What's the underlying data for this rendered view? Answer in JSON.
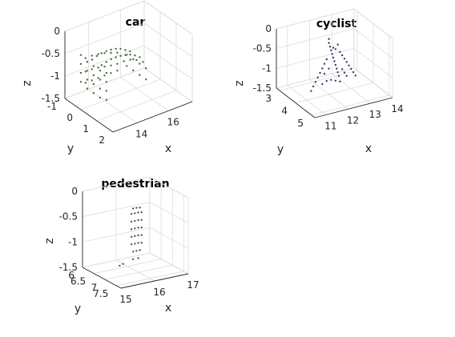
{
  "chart_data": [
    {
      "type": "scatter",
      "title": "car",
      "xlabel": "x",
      "ylabel": "y",
      "zlabel": "z",
      "xticks": [
        "14",
        "16"
      ],
      "yticks": [
        "-1",
        "0",
        "1",
        "2"
      ],
      "zticks": [
        "0",
        "-0.5",
        "-1",
        "-1.5"
      ],
      "xlim": [
        12.5,
        17.5
      ],
      "ylim": [
        -1,
        2
      ],
      "zlim": [
        -1.5,
        0
      ],
      "grid": true,
      "marker_color": "#4a6b3a",
      "series": [
        {
          "points": [
            [
              13.2,
              0.6,
              -0.45
            ],
            [
              13.5,
              0.6,
              -0.42
            ],
            [
              13.8,
              0.6,
              -0.4
            ],
            [
              14.1,
              0.6,
              -0.4
            ],
            [
              14.4,
              0.6,
              -0.41
            ],
            [
              14.7,
              0.6,
              -0.43
            ],
            [
              15.0,
              0.6,
              -0.46
            ],
            [
              15.3,
              0.6,
              -0.52
            ],
            [
              15.6,
              0.6,
              -0.6
            ],
            [
              13.2,
              0.0,
              -0.48
            ],
            [
              13.5,
              0.0,
              -0.44
            ],
            [
              13.8,
              0.0,
              -0.42
            ],
            [
              14.1,
              0.0,
              -0.41
            ],
            [
              14.4,
              0.0,
              -0.42
            ],
            [
              14.7,
              0.0,
              -0.44
            ],
            [
              15.0,
              0.0,
              -0.48
            ],
            [
              15.3,
              0.0,
              -0.55
            ],
            [
              15.6,
              0.0,
              -0.62
            ],
            [
              13.2,
              0.9,
              -0.55
            ],
            [
              13.2,
              0.9,
              -0.75
            ],
            [
              13.2,
              0.9,
              -0.95
            ],
            [
              13.2,
              0.9,
              -1.15
            ],
            [
              13.2,
              0.5,
              -0.6
            ],
            [
              13.2,
              0.5,
              -0.8
            ],
            [
              13.2,
              0.5,
              -1.0
            ],
            [
              13.2,
              0.5,
              -1.2
            ],
            [
              13.2,
              0.1,
              -0.6
            ],
            [
              13.2,
              0.1,
              -0.8
            ],
            [
              13.2,
              0.1,
              -1.0
            ],
            [
              13.2,
              0.1,
              -1.2
            ],
            [
              13.2,
              -0.3,
              -0.6
            ],
            [
              13.2,
              -0.3,
              -0.8
            ],
            [
              13.2,
              -0.3,
              -1.0
            ],
            [
              13.2,
              -0.3,
              -1.2
            ],
            [
              13.2,
              -0.7,
              -0.55
            ],
            [
              13.2,
              -0.7,
              -0.75
            ],
            [
              13.2,
              -0.7,
              -0.95
            ],
            [
              13.2,
              -0.7,
              -1.15
            ],
            [
              13.6,
              -0.8,
              -0.7
            ],
            [
              14.0,
              -0.8,
              -0.7
            ],
            [
              14.4,
              -0.8,
              -0.72
            ],
            [
              14.8,
              -0.8,
              -0.75
            ],
            [
              15.2,
              -0.8,
              -0.8
            ],
            [
              15.6,
              -0.8,
              -0.85
            ],
            [
              13.6,
              -0.8,
              -1.0
            ],
            [
              14.0,
              -0.8,
              -1.0
            ],
            [
              14.4,
              -0.8,
              -1.02
            ],
            [
              14.8,
              -0.8,
              -1.05
            ],
            [
              15.2,
              -0.8,
              -1.08
            ],
            [
              15.6,
              -0.8,
              -1.1
            ],
            [
              13.6,
              -0.8,
              -1.25
            ],
            [
              14.0,
              -0.8,
              -1.25
            ],
            [
              14.4,
              -0.8,
              -1.25
            ],
            [
              14.8,
              -0.8,
              -1.25
            ],
            [
              15.2,
              -0.8,
              -1.25
            ],
            [
              15.6,
              -0.8,
              -1.25
            ],
            [
              16.0,
              -0.6,
              -0.9
            ],
            [
              16.0,
              -0.2,
              -0.9
            ],
            [
              16.0,
              0.2,
              -0.9
            ],
            [
              16.0,
              0.6,
              -0.9
            ],
            [
              16.0,
              -0.6,
              -1.15
            ],
            [
              16.0,
              -0.2,
              -1.15
            ],
            [
              16.0,
              0.2,
              -1.15
            ],
            [
              16.0,
              0.6,
              -1.15
            ],
            [
              14.2,
              1.0,
              -0.4
            ],
            [
              14.6,
              1.0,
              -0.42
            ],
            [
              15.0,
              1.0,
              -0.48
            ],
            [
              15.4,
              1.0,
              -0.58
            ]
          ]
        }
      ]
    },
    {
      "type": "scatter",
      "title": "cyclist",
      "xlabel": "x",
      "ylabel": "y",
      "zlabel": "z",
      "xticks": [
        "11",
        "12",
        "13",
        "14"
      ],
      "yticks": [
        "3",
        "4",
        "5"
      ],
      "zticks": [
        "0",
        "-0.5",
        "-1",
        "-1.5"
      ],
      "xlim": [
        10.5,
        14
      ],
      "ylim": [
        2.8,
        5.2
      ],
      "zlim": [
        -1.5,
        0
      ],
      "grid": true,
      "marker_color": "#3a3a6b",
      "series": [
        {
          "points": [
            [
              12.0,
              4.0,
              -0.1
            ],
            [
              12.0,
              4.0,
              -0.2
            ],
            [
              12.05,
              4.0,
              -0.3
            ],
            [
              12.1,
              4.0,
              -0.4
            ],
            [
              12.15,
              4.0,
              -0.5
            ],
            [
              12.2,
              4.0,
              -0.6
            ],
            [
              12.25,
              4.0,
              -0.7
            ],
            [
              12.3,
              4.0,
              -0.8
            ],
            [
              12.35,
              4.0,
              -0.9
            ],
            [
              12.4,
              4.0,
              -1.0
            ],
            [
              12.45,
              4.0,
              -1.1
            ],
            [
              11.9,
              4.0,
              -0.6
            ],
            [
              11.8,
              4.0,
              -0.7
            ],
            [
              11.7,
              4.0,
              -0.8
            ],
            [
              11.6,
              4.0,
              -0.9
            ],
            [
              11.5,
              4.0,
              -1.0
            ],
            [
              11.4,
              4.0,
              -1.1
            ],
            [
              11.3,
              4.0,
              -1.2
            ],
            [
              11.2,
              4.0,
              -1.3
            ],
            [
              12.5,
              4.0,
              -0.5
            ],
            [
              12.6,
              4.0,
              -0.6
            ],
            [
              12.7,
              4.0,
              -0.7
            ],
            [
              12.8,
              4.0,
              -0.8
            ],
            [
              12.9,
              4.0,
              -0.9
            ],
            [
              13.0,
              4.0,
              -1.0
            ],
            [
              13.1,
              4.0,
              -1.1
            ],
            [
              13.2,
              4.0,
              -1.2
            ],
            [
              12.3,
              4.0,
              -0.4
            ],
            [
              12.4,
              4.0,
              -0.3
            ],
            [
              12.2,
              4.0,
              -0.35
            ],
            [
              11.7,
              4.0,
              -1.2
            ],
            [
              11.9,
              4.0,
              -1.15
            ],
            [
              12.1,
              4.0,
              -1.15
            ],
            [
              12.3,
              4.0,
              -1.2
            ],
            [
              12.5,
              4.0,
              -1.25
            ],
            [
              12.6,
              4.0,
              -0.95
            ],
            [
              12.7,
              4.0,
              -1.05
            ],
            [
              12.8,
              4.0,
              -1.15
            ],
            [
              11.8,
              4.0,
              -0.95
            ],
            [
              12.0,
              4.0,
              -0.85
            ]
          ]
        }
      ]
    },
    {
      "type": "scatter",
      "title": "pedestrian",
      "xlabel": "x",
      "ylabel": "y",
      "zlabel": "z",
      "xticks": [
        "15",
        "16",
        "17"
      ],
      "yticks": [
        "6",
        "6.5",
        "7",
        "7.5"
      ],
      "zticks": [
        "0",
        "-0.5",
        "-1",
        "-1.5"
      ],
      "xlim": [
        15,
        17
      ],
      "ylim": [
        6,
        7.7
      ],
      "zlim": [
        -1.5,
        0
      ],
      "grid": true,
      "marker_color": "#555555",
      "series": [
        {
          "points": [
            [
              15.9,
              6.9,
              -0.25
            ],
            [
              16.0,
              6.9,
              -0.25
            ],
            [
              16.1,
              6.9,
              -0.26
            ],
            [
              15.85,
              6.9,
              -0.35
            ],
            [
              15.95,
              6.9,
              -0.35
            ],
            [
              16.05,
              6.9,
              -0.35
            ],
            [
              16.15,
              6.9,
              -0.36
            ],
            [
              15.85,
              6.9,
              -0.5
            ],
            [
              15.95,
              6.9,
              -0.5
            ],
            [
              16.05,
              6.9,
              -0.5
            ],
            [
              16.15,
              6.9,
              -0.51
            ],
            [
              15.85,
              6.9,
              -0.65
            ],
            [
              15.95,
              6.9,
              -0.65
            ],
            [
              16.05,
              6.9,
              -0.65
            ],
            [
              16.15,
              6.9,
              -0.66
            ],
            [
              15.85,
              6.9,
              -0.8
            ],
            [
              15.95,
              6.9,
              -0.8
            ],
            [
              16.05,
              6.9,
              -0.8
            ],
            [
              16.15,
              6.9,
              -0.81
            ],
            [
              15.85,
              6.9,
              -0.95
            ],
            [
              15.95,
              6.9,
              -0.95
            ],
            [
              16.05,
              6.9,
              -0.95
            ],
            [
              16.15,
              6.9,
              -0.96
            ],
            [
              15.9,
              6.9,
              -1.1
            ],
            [
              16.0,
              6.9,
              -1.1
            ],
            [
              16.1,
              6.9,
              -1.1
            ],
            [
              15.9,
              6.9,
              -1.25
            ],
            [
              16.05,
              6.9,
              -1.25
            ],
            [
              15.5,
              6.9,
              -1.32
            ],
            [
              15.6,
              6.9,
              -1.3
            ]
          ]
        }
      ]
    }
  ]
}
